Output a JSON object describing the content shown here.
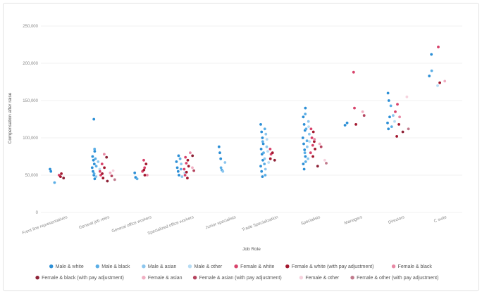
{
  "chart_data": {
    "type": "scatter",
    "xlabel": "Job Role",
    "ylabel": "Compensation after raise",
    "ylim": [
      0,
      250000
    ],
    "yticks": [
      "0",
      "50,000",
      "100,000",
      "150,000",
      "200,000",
      "250,000"
    ],
    "grid": true,
    "legend_position": "bottom",
    "categories": [
      "Front line representatives",
      "General job roles",
      "General office workers",
      "Specialized office workers",
      "Junior specialists",
      "Trade Specialization",
      "Specialists",
      "Managers",
      "Directors",
      "C suite"
    ],
    "series": [
      {
        "name": "Male & white",
        "color": "#2c8fd6",
        "points": [
          {
            "c": 0,
            "y": 58000
          },
          {
            "c": 0,
            "y": 55000
          },
          {
            "c": 1,
            "y": 125000
          },
          {
            "c": 1,
            "y": 82000
          },
          {
            "c": 1,
            "y": 75000
          },
          {
            "c": 1,
            "y": 70000
          },
          {
            "c": 1,
            "y": 65000
          },
          {
            "c": 1,
            "y": 60000
          },
          {
            "c": 1,
            "y": 55000
          },
          {
            "c": 1,
            "y": 50000
          },
          {
            "c": 1,
            "y": 45000
          },
          {
            "c": 2,
            "y": 53000
          },
          {
            "c": 2,
            "y": 47000
          },
          {
            "c": 3,
            "y": 76000
          },
          {
            "c": 3,
            "y": 68000
          },
          {
            "c": 3,
            "y": 60000
          },
          {
            "c": 3,
            "y": 55000
          },
          {
            "c": 3,
            "y": 50000
          },
          {
            "c": 4,
            "y": 88000
          },
          {
            "c": 4,
            "y": 80000
          },
          {
            "c": 4,
            "y": 72000
          },
          {
            "c": 5,
            "y": 118000
          },
          {
            "c": 5,
            "y": 108000
          },
          {
            "c": 5,
            "y": 100000
          },
          {
            "c": 5,
            "y": 92000
          },
          {
            "c": 5,
            "y": 85000
          },
          {
            "c": 5,
            "y": 78000
          },
          {
            "c": 5,
            "y": 70000
          },
          {
            "c": 5,
            "y": 62000
          },
          {
            "c": 5,
            "y": 55000
          },
          {
            "c": 5,
            "y": 48000
          },
          {
            "c": 6,
            "y": 140000
          },
          {
            "c": 6,
            "y": 128000
          },
          {
            "c": 6,
            "y": 118000
          },
          {
            "c": 6,
            "y": 110000
          },
          {
            "c": 6,
            "y": 100000
          },
          {
            "c": 6,
            "y": 92000
          },
          {
            "c": 6,
            "y": 84000
          },
          {
            "c": 6,
            "y": 75000
          },
          {
            "c": 6,
            "y": 65000
          },
          {
            "c": 6,
            "y": 58000
          },
          {
            "c": 7,
            "y": 120000
          },
          {
            "c": 7,
            "y": 117000
          },
          {
            "c": 8,
            "y": 160000
          },
          {
            "c": 8,
            "y": 150000
          },
          {
            "c": 8,
            "y": 128000
          },
          {
            "c": 8,
            "y": 120000
          },
          {
            "c": 8,
            "y": 112000
          },
          {
            "c": 9,
            "y": 212000
          },
          {
            "c": 9,
            "y": 183000
          }
        ]
      },
      {
        "name": "Male & black",
        "color": "#5aaee6",
        "points": [
          {
            "c": 0,
            "y": 40000
          },
          {
            "c": 1,
            "y": 85000
          },
          {
            "c": 1,
            "y": 72000
          },
          {
            "c": 1,
            "y": 62000
          },
          {
            "c": 1,
            "y": 52000
          },
          {
            "c": 2,
            "y": 45000
          },
          {
            "c": 3,
            "y": 72000
          },
          {
            "c": 3,
            "y": 58000
          },
          {
            "c": 4,
            "y": 60000
          },
          {
            "c": 4,
            "y": 57000
          },
          {
            "c": 5,
            "y": 112000
          },
          {
            "c": 5,
            "y": 95000
          },
          {
            "c": 5,
            "y": 80000
          },
          {
            "c": 5,
            "y": 65000
          },
          {
            "c": 5,
            "y": 50000
          },
          {
            "c": 6,
            "y": 132000
          },
          {
            "c": 6,
            "y": 112000
          },
          {
            "c": 6,
            "y": 96000
          },
          {
            "c": 6,
            "y": 80000
          },
          {
            "c": 6,
            "y": 68000
          },
          {
            "c": 8,
            "y": 143000
          },
          {
            "c": 8,
            "y": 115000
          },
          {
            "c": 9,
            "y": 190000
          }
        ]
      },
      {
        "name": "Male & asian",
        "color": "#8cc6ee",
        "points": [
          {
            "c": 1,
            "y": 68000
          },
          {
            "c": 1,
            "y": 48000
          },
          {
            "c": 3,
            "y": 65000
          },
          {
            "c": 3,
            "y": 48000
          },
          {
            "c": 4,
            "y": 67000
          },
          {
            "c": 4,
            "y": 55000
          },
          {
            "c": 5,
            "y": 105000
          },
          {
            "c": 5,
            "y": 88000
          },
          {
            "c": 5,
            "y": 72000
          },
          {
            "c": 5,
            "y": 58000
          },
          {
            "c": 6,
            "y": 122000
          },
          {
            "c": 6,
            "y": 105000
          },
          {
            "c": 6,
            "y": 88000
          },
          {
            "c": 6,
            "y": 72000
          },
          {
            "c": 8,
            "y": 130000
          }
        ]
      },
      {
        "name": "Male & other",
        "color": "#b7dcf4",
        "points": [
          {
            "c": 1,
            "y": 58000
          },
          {
            "c": 3,
            "y": 53000
          },
          {
            "c": 5,
            "y": 98000
          },
          {
            "c": 5,
            "y": 82000
          },
          {
            "c": 5,
            "y": 67000
          },
          {
            "c": 6,
            "y": 115000
          },
          {
            "c": 6,
            "y": 95000
          },
          {
            "c": 8,
            "y": 122000
          },
          {
            "c": 9,
            "y": 170000
          }
        ]
      },
      {
        "name": "Female & white",
        "color": "#d8436b",
        "points": [
          {
            "c": 0,
            "y": 50000
          },
          {
            "c": 1,
            "y": 65000
          },
          {
            "c": 1,
            "y": 55000
          },
          {
            "c": 1,
            "y": 50000
          },
          {
            "c": 2,
            "y": 70000
          },
          {
            "c": 2,
            "y": 60000
          },
          {
            "c": 2,
            "y": 55000
          },
          {
            "c": 3,
            "y": 74000
          },
          {
            "c": 3,
            "y": 66000
          },
          {
            "c": 3,
            "y": 58000
          },
          {
            "c": 3,
            "y": 50000
          },
          {
            "c": 5,
            "y": 85000
          },
          {
            "c": 5,
            "y": 78000
          },
          {
            "c": 6,
            "y": 112000
          },
          {
            "c": 6,
            "y": 100000
          },
          {
            "c": 6,
            "y": 90000
          },
          {
            "c": 6,
            "y": 80000
          },
          {
            "c": 7,
            "y": 188000
          },
          {
            "c": 7,
            "y": 140000
          },
          {
            "c": 8,
            "y": 145000
          },
          {
            "c": 8,
            "y": 135000
          },
          {
            "c": 9,
            "y": 222000
          }
        ]
      },
      {
        "name": "Female & white (with pay adjustment)",
        "color": "#a3182f",
        "points": [
          {
            "c": 0,
            "y": 48000
          },
          {
            "c": 0,
            "y": 52000
          },
          {
            "c": 1,
            "y": 60000
          },
          {
            "c": 1,
            "y": 52000
          },
          {
            "c": 1,
            "y": 46000
          },
          {
            "c": 2,
            "y": 65000
          },
          {
            "c": 2,
            "y": 57000
          },
          {
            "c": 2,
            "y": 50000
          },
          {
            "c": 3,
            "y": 70000
          },
          {
            "c": 3,
            "y": 62000
          },
          {
            "c": 3,
            "y": 54000
          },
          {
            "c": 3,
            "y": 46000
          },
          {
            "c": 5,
            "y": 80000
          },
          {
            "c": 5,
            "y": 72000
          },
          {
            "c": 6,
            "y": 108000
          },
          {
            "c": 6,
            "y": 95000
          },
          {
            "c": 6,
            "y": 85000
          },
          {
            "c": 6,
            "y": 75000
          },
          {
            "c": 7,
            "y": 118000
          },
          {
            "c": 8,
            "y": 118000
          },
          {
            "c": 8,
            "y": 102000
          },
          {
            "c": 9,
            "y": 174000
          }
        ]
      },
      {
        "name": "Female & black",
        "color": "#e889a5",
        "points": [
          {
            "c": 1,
            "y": 78000
          },
          {
            "c": 2,
            "y": 50000
          },
          {
            "c": 3,
            "y": 80000
          },
          {
            "c": 6,
            "y": 98000
          },
          {
            "c": 8,
            "y": 128000
          }
        ]
      },
      {
        "name": "Female & black (with pay adjustment)",
        "color": "#8e2237",
        "points": [
          {
            "c": 0,
            "y": 46000
          },
          {
            "c": 1,
            "y": 74000
          },
          {
            "c": 1,
            "y": 42000
          },
          {
            "c": 3,
            "y": 76000
          },
          {
            "c": 5,
            "y": 70000
          },
          {
            "c": 6,
            "y": 62000
          },
          {
            "c": 8,
            "y": 108000
          }
        ]
      },
      {
        "name": "Female & asian",
        "color": "#f0aec2",
        "points": [
          {
            "c": 1,
            "y": 53000
          },
          {
            "c": 3,
            "y": 60000
          },
          {
            "c": 6,
            "y": 92000
          },
          {
            "c": 7,
            "y": 135000
          },
          {
            "c": 9,
            "y": 176000
          }
        ]
      },
      {
        "name": "Female & asian (with pay adjustment)",
        "color": "#b5445e",
        "points": [
          {
            "c": 1,
            "y": 49000
          },
          {
            "c": 3,
            "y": 56000
          },
          {
            "c": 6,
            "y": 88000
          },
          {
            "c": 7,
            "y": 130000
          }
        ]
      },
      {
        "name": "Female & other",
        "color": "#f6d3de",
        "points": [
          {
            "c": 1,
            "y": 56000
          },
          {
            "c": 6,
            "y": 70000
          },
          {
            "c": 8,
            "y": 155000
          }
        ]
      },
      {
        "name": "Female & other (with pay adjustment)",
        "color": "#c07a8c",
        "points": [
          {
            "c": 1,
            "y": 44000
          },
          {
            "c": 6,
            "y": 66000
          },
          {
            "c": 8,
            "y": 112000
          }
        ]
      }
    ]
  }
}
